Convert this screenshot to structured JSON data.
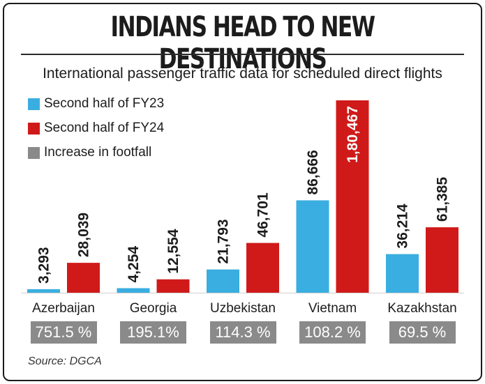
{
  "title": "INDIANS HEAD TO NEW DESTINATIONS",
  "subtitle": "International passenger traffic data for scheduled direct flights",
  "source": "Source: DGCA",
  "colors": {
    "fy23": "#3aaee0",
    "fy24": "#d01a1a",
    "increase": "#8a8a8a"
  },
  "legend": [
    {
      "label": "Second half of FY23",
      "color": "#3aaee0"
    },
    {
      "label": "Second half of FY24",
      "color": "#d01a1a"
    },
    {
      "label": "Increase in footfall",
      "color": "#8a8a8a"
    }
  ],
  "chart_data": {
    "type": "bar",
    "title": "INDIANS HEAD TO NEW DESTINATIONS",
    "subtitle": "International passenger traffic data for scheduled direct flights",
    "categories": [
      "Azerbaijan",
      "Georgia",
      "Uzbekistan",
      "Vietnam",
      "Kazakhstan"
    ],
    "series": [
      {
        "name": "Second half of FY23",
        "values": [
          3293,
          4254,
          21793,
          86666,
          36214
        ],
        "labels": [
          "3,293",
          "4,254",
          "21,793",
          "86,666",
          "36,214"
        ]
      },
      {
        "name": "Second half of FY24",
        "values": [
          28039,
          12554,
          46701,
          180467,
          61385
        ],
        "labels": [
          "28,039",
          "12,554",
          "46,701",
          "1,80,467",
          "61,385"
        ]
      }
    ],
    "increase": [
      "751.5 %",
      "195.1%",
      "114.3 %",
      "108.2 %",
      "69.5 %"
    ],
    "ylim": [
      0,
      180467
    ],
    "xlabel": "",
    "ylabel": "",
    "grid": false
  }
}
